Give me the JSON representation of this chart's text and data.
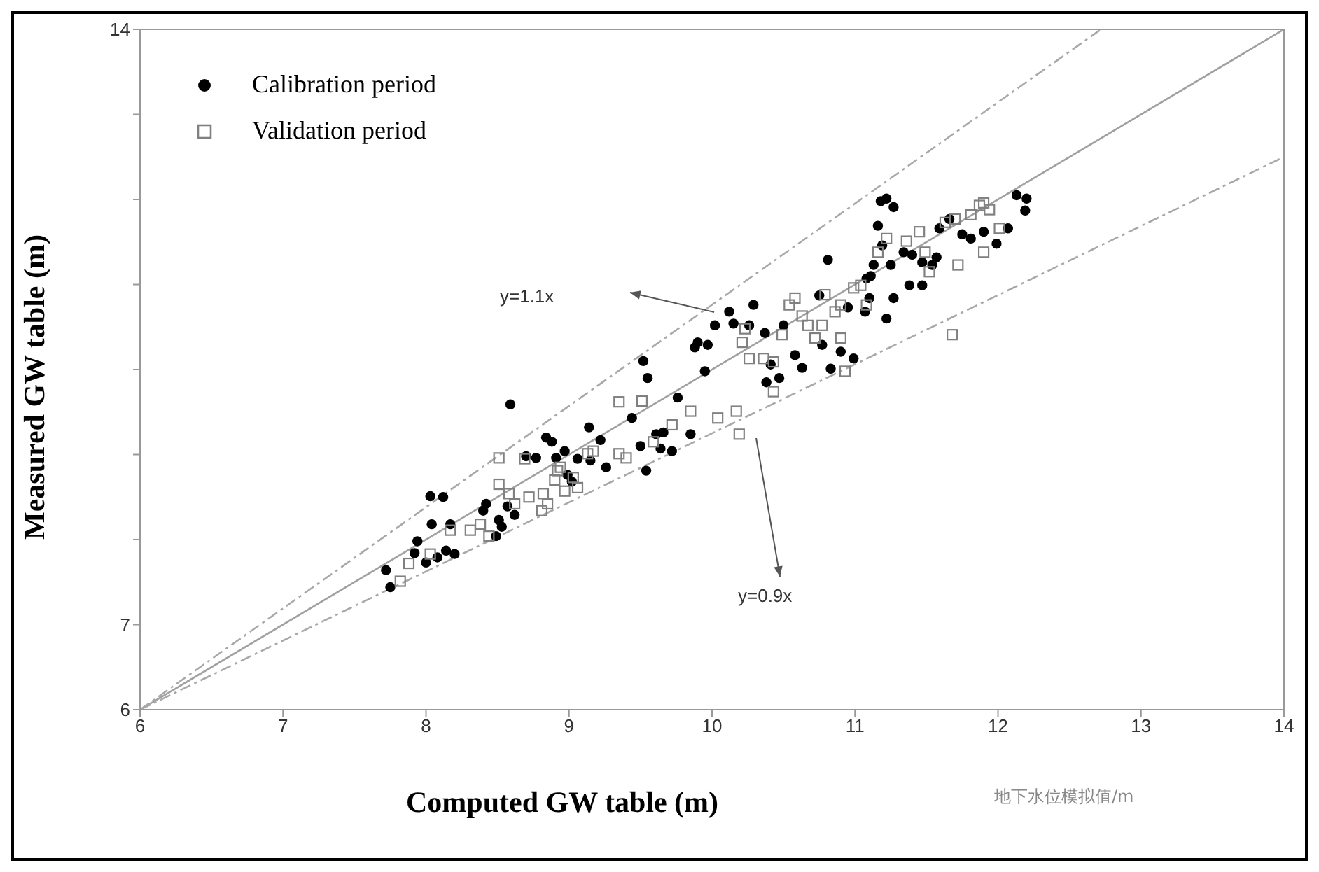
{
  "chart_data": {
    "type": "scatter",
    "xlabel": "Computed GW table (m)",
    "ylabel": "Measured GW table (m)",
    "xlim": [
      6,
      14
    ],
    "xticks": [
      6,
      7,
      8,
      9,
      10,
      11,
      12,
      13,
      14
    ],
    "ylim": [
      6,
      14
    ],
    "yticks": [
      6,
      7,
      {
        "value": 8,
        "label": null
      },
      {
        "value": 9,
        "label": null
      },
      {
        "value": 10,
        "label": null
      },
      {
        "value": 11,
        "label": null
      },
      {
        "value": 12,
        "label": null
      },
      {
        "value": 13,
        "label": null
      },
      14
    ],
    "legend": "top left",
    "series": [
      {
        "name": "Calibration period",
        "color": "#000000",
        "marker": "circle",
        "x": [
          7.72,
          7.75,
          7.94,
          8.03,
          8.12,
          7.92,
          8.0,
          8.08,
          8.14,
          8.2,
          8.04,
          8.17,
          8.4,
          8.42,
          8.49,
          8.51,
          8.53,
          8.59,
          8.57,
          8.62,
          8.7,
          8.77,
          8.84,
          8.88,
          8.91,
          8.97,
          8.99,
          9.02,
          9.06,
          9.15,
          9.26,
          9.22,
          9.14,
          9.5,
          9.54,
          9.64,
          9.72,
          9.61,
          9.66,
          9.44,
          9.52,
          9.55,
          9.76,
          9.85,
          9.95,
          9.88,
          9.9,
          9.97,
          10.12,
          10.15,
          10.26,
          10.29,
          10.02,
          10.37,
          10.5,
          10.41,
          10.38,
          10.47,
          10.58,
          10.63,
          10.83,
          10.77,
          10.9,
          10.99,
          11.07,
          11.08,
          11.11,
          11.13,
          11.16,
          11.18,
          11.22,
          11.27,
          11.19,
          11.25,
          11.34,
          11.4,
          11.47,
          11.54,
          11.59,
          11.66,
          11.81,
          11.9,
          12.07,
          11.99,
          12.13,
          12.2,
          12.19,
          11.75,
          11.57,
          11.1,
          11.27,
          11.38,
          11.47,
          10.81,
          10.95,
          11.22,
          10.75
        ],
        "values": [
          7.64,
          7.44,
          7.98,
          8.51,
          8.5,
          7.84,
          7.73,
          7.79,
          7.87,
          7.83,
          8.18,
          8.18,
          8.34,
          8.42,
          8.04,
          8.23,
          8.15,
          9.59,
          8.39,
          8.29,
          8.98,
          8.96,
          9.2,
          9.15,
          8.96,
          9.04,
          8.76,
          8.68,
          8.95,
          8.93,
          8.85,
          9.17,
          9.32,
          9.1,
          8.81,
          9.07,
          9.04,
          9.24,
          9.26,
          9.43,
          10.1,
          9.9,
          9.67,
          9.24,
          9.98,
          10.26,
          10.32,
          10.29,
          10.68,
          10.54,
          10.52,
          10.76,
          10.52,
          10.43,
          10.52,
          10.06,
          9.85,
          9.9,
          10.17,
          10.02,
          10.01,
          10.29,
          10.21,
          10.13,
          10.68,
          11.07,
          11.1,
          11.23,
          11.69,
          11.98,
          12.01,
          11.91,
          11.46,
          11.23,
          11.38,
          11.35,
          11.26,
          11.23,
          11.66,
          11.77,
          11.54,
          11.62,
          11.66,
          11.48,
          12.05,
          12.01,
          11.87,
          11.59,
          11.32,
          10.84,
          10.84,
          10.99,
          10.99,
          11.29,
          10.73,
          10.6,
          10.87
        ]
      },
      {
        "name": "Validation period",
        "color": "#808080",
        "marker": "square",
        "x": [
          7.82,
          7.88,
          8.03,
          8.17,
          8.31,
          8.38,
          8.44,
          8.51,
          8.58,
          8.62,
          8.72,
          8.81,
          8.85,
          8.82,
          8.9,
          8.92,
          8.94,
          8.97,
          9.03,
          9.06,
          9.13,
          9.17,
          9.35,
          9.4,
          9.51,
          9.59,
          9.72,
          9.85,
          10.04,
          10.17,
          10.19,
          10.23,
          10.21,
          10.26,
          10.36,
          10.43,
          10.43,
          10.49,
          10.54,
          10.58,
          10.63,
          10.67,
          10.72,
          10.77,
          10.79,
          10.86,
          10.9,
          10.9,
          10.93,
          10.99,
          11.04,
          11.08,
          11.16,
          11.22,
          11.36,
          11.45,
          11.49,
          11.52,
          11.63,
          11.7,
          11.81,
          11.87,
          11.94,
          12.01,
          11.9,
          11.68,
          11.72,
          11.9,
          8.51,
          9.35,
          8.69
        ],
        "values": [
          7.51,
          7.72,
          7.83,
          8.11,
          8.11,
          8.18,
          8.04,
          8.65,
          8.54,
          8.42,
          8.5,
          8.34,
          8.42,
          8.54,
          8.7,
          8.81,
          8.85,
          8.57,
          8.73,
          8.61,
          9.01,
          9.04,
          9.01,
          8.96,
          9.63,
          9.15,
          9.35,
          9.51,
          9.43,
          9.51,
          9.24,
          10.48,
          10.32,
          10.13,
          10.13,
          10.09,
          9.74,
          10.41,
          10.76,
          10.84,
          10.63,
          10.52,
          10.37,
          10.52,
          10.88,
          10.68,
          10.76,
          10.37,
          9.98,
          10.96,
          10.99,
          10.76,
          11.38,
          11.54,
          11.51,
          11.62,
          11.38,
          11.15,
          11.73,
          11.77,
          11.82,
          11.93,
          11.88,
          11.66,
          11.38,
          10.41,
          11.23,
          11.96,
          8.96,
          9.62,
          8.95
        ]
      },
      {
        "type": "line",
        "color": "#a0a0a0",
        "line_style": "solid",
        "marker": "none",
        "x": [
          6,
          14
        ],
        "values": [
          6,
          14
        ]
      },
      {
        "type": "line",
        "color": "#a8a8a8",
        "line_style": "dashed",
        "marker": "none",
        "x": [
          6,
          12.72
        ],
        "values": [
          6,
          14
        ]
      },
      {
        "type": "line",
        "color": "#a8a8a8",
        "line_style": "dashed",
        "marker": "none",
        "x": [
          6,
          14
        ],
        "values": [
          6,
          12.5
        ]
      }
    ],
    "annotations": [
      "y=1.1x",
      "y=0.9x",
      "地下水位模拟值/m"
    ]
  }
}
